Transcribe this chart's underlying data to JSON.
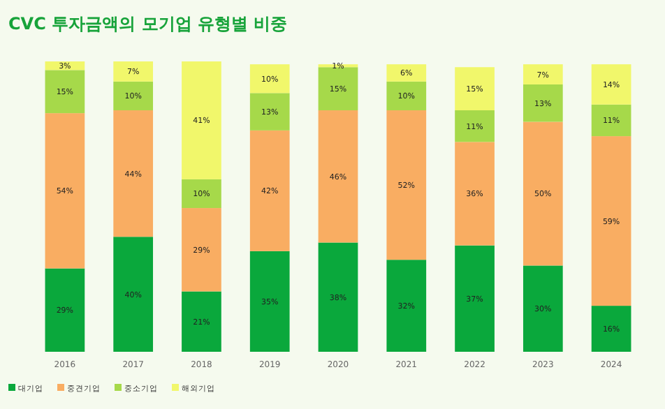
{
  "chart_data": {
    "type": "bar",
    "title": "CVC 투자금액의 모기업 유형별 비중",
    "categories": [
      "2016",
      "2017",
      "2018",
      "2019",
      "2020",
      "2021",
      "2022",
      "2023",
      "2024"
    ],
    "series": [
      {
        "name": "대기업",
        "color": "#0aa83c",
        "values": [
          29,
          40,
          21,
          35,
          38,
          32,
          37,
          30,
          16
        ],
        "value_labels": [
          "29%",
          "40%",
          "21%",
          "35%",
          "38%",
          "32%",
          "37%",
          "30%",
          "16%"
        ]
      },
      {
        "name": "중견기업",
        "color": "#f9ad62",
        "values": [
          54,
          44,
          29,
          42,
          46,
          52,
          36,
          50,
          59
        ],
        "value_labels": [
          "54%",
          "44%",
          "29%",
          "42%",
          "46%",
          "52%",
          "36%",
          "50%",
          "59%"
        ]
      },
      {
        "name": "중소기업",
        "color": "#a6d94a",
        "values": [
          15,
          10,
          10,
          13,
          15,
          10,
          11,
          13,
          11
        ],
        "value_labels": [
          "15%",
          "10%",
          "10%",
          "13%",
          "15%",
          "10%",
          "11%",
          "13%",
          "11%"
        ]
      },
      {
        "name": "해외기업",
        "color": "#f1f76b",
        "values": [
          3,
          7,
          41,
          10,
          1,
          6,
          15,
          7,
          14
        ],
        "value_labels": [
          "3%",
          "7%",
          "41%",
          "10%",
          "1%",
          "6%",
          "15%",
          "7%",
          "14%"
        ]
      }
    ],
    "stacked": true,
    "legend": "bottom left"
  }
}
